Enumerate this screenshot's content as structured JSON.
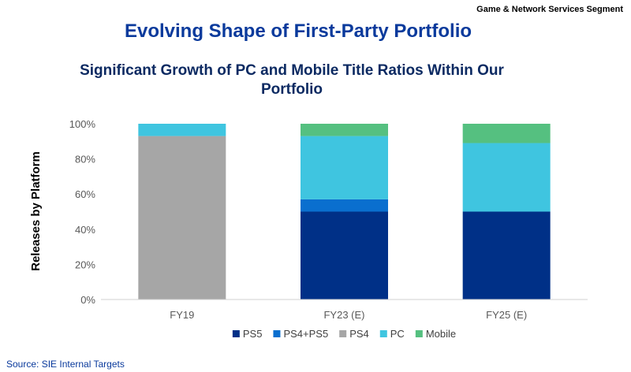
{
  "header": {
    "segment": "Game & Network Services Segment",
    "title": "Evolving Shape of First-Party Portfolio",
    "subtitle": "Significant Growth of PC and Mobile Title Ratios Within Our Portfolio"
  },
  "source": "Source: SIE Internal Targets",
  "chart_data": {
    "type": "bar",
    "stacked": true,
    "title": "",
    "xlabel": "",
    "ylabel": "Releases by Platform",
    "ylim": [
      0,
      100
    ],
    "yticks": [
      "0%",
      "20%",
      "40%",
      "60%",
      "80%",
      "100%"
    ],
    "categories": [
      "FY19",
      "FY23 (E)",
      "FY25 (E)"
    ],
    "series": [
      {
        "name": "PS5",
        "color": "#003087",
        "values": [
          0,
          50,
          50
        ]
      },
      {
        "name": "PS4+PS5",
        "color": "#0a6fcf",
        "values": [
          0,
          7,
          0
        ]
      },
      {
        "name": "PS4",
        "color": "#a6a6a6",
        "values": [
          93,
          0,
          0
        ]
      },
      {
        "name": "PC",
        "color": "#3fc5e0",
        "values": [
          7,
          36,
          39
        ]
      },
      {
        "name": "Mobile",
        "color": "#55c080",
        "values": [
          0,
          7,
          11
        ]
      }
    ],
    "grid": false,
    "legend_position": "bottom"
  }
}
